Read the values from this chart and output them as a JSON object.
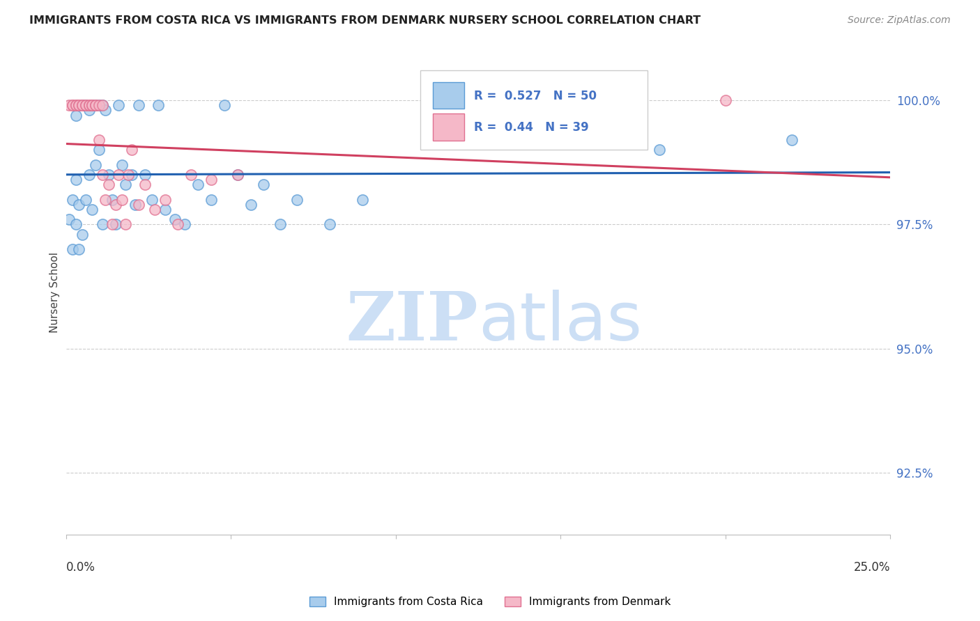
{
  "title": "IMMIGRANTS FROM COSTA RICA VS IMMIGRANTS FROM DENMARK NURSERY SCHOOL CORRELATION CHART",
  "source": "Source: ZipAtlas.com",
  "ylabel": "Nursery School",
  "ytick_labels": [
    "92.5%",
    "95.0%",
    "97.5%",
    "100.0%"
  ],
  "ytick_values": [
    0.925,
    0.95,
    0.975,
    1.0
  ],
  "xlim": [
    0.0,
    0.25
  ],
  "ylim": [
    0.9125,
    1.01
  ],
  "legend_blue_label": "Immigrants from Costa Rica",
  "legend_pink_label": "Immigrants from Denmark",
  "R_blue": 0.527,
  "N_blue": 50,
  "R_pink": 0.44,
  "N_pink": 39,
  "blue_color": "#a8ccec",
  "pink_color": "#f5b8c8",
  "blue_edge_color": "#5b9bd5",
  "pink_edge_color": "#e07090",
  "blue_line_color": "#2060b0",
  "pink_line_color": "#d04060",
  "watermark_zip_color": "#ccdff5",
  "watermark_atlas_color": "#ccdff5",
  "grid_color": "#cccccc",
  "tick_label_color": "#4472c4",
  "title_color": "#222222",
  "source_color": "#888888",
  "ylabel_color": "#444444",
  "costa_rica_x": [
    0.001,
    0.002,
    0.002,
    0.003,
    0.003,
    0.003,
    0.004,
    0.004,
    0.005,
    0.005,
    0.006,
    0.006,
    0.007,
    0.007,
    0.008,
    0.008,
    0.009,
    0.009,
    0.01,
    0.01,
    0.011,
    0.011,
    0.012,
    0.013,
    0.014,
    0.015,
    0.016,
    0.017,
    0.018,
    0.02,
    0.021,
    0.022,
    0.024,
    0.026,
    0.028,
    0.03,
    0.033,
    0.036,
    0.04,
    0.044,
    0.048,
    0.052,
    0.056,
    0.06,
    0.065,
    0.07,
    0.08,
    0.09,
    0.18,
    0.22
  ],
  "costa_rica_y": [
    0.976,
    0.97,
    0.98,
    0.997,
    0.975,
    0.984,
    0.97,
    0.979,
    0.999,
    0.973,
    0.98,
    0.999,
    0.998,
    0.985,
    0.999,
    0.978,
    0.999,
    0.987,
    0.999,
    0.99,
    0.999,
    0.975,
    0.998,
    0.985,
    0.98,
    0.975,
    0.999,
    0.987,
    0.983,
    0.985,
    0.979,
    0.999,
    0.985,
    0.98,
    0.999,
    0.978,
    0.976,
    0.975,
    0.983,
    0.98,
    0.999,
    0.985,
    0.979,
    0.983,
    0.975,
    0.98,
    0.975,
    0.98,
    0.99,
    0.992
  ],
  "denmark_x": [
    0.001,
    0.002,
    0.002,
    0.003,
    0.003,
    0.004,
    0.004,
    0.005,
    0.005,
    0.006,
    0.006,
    0.007,
    0.007,
    0.008,
    0.008,
    0.009,
    0.009,
    0.01,
    0.01,
    0.011,
    0.011,
    0.012,
    0.013,
    0.014,
    0.015,
    0.016,
    0.017,
    0.018,
    0.019,
    0.02,
    0.022,
    0.024,
    0.027,
    0.03,
    0.034,
    0.038,
    0.044,
    0.052,
    0.2
  ],
  "denmark_y": [
    0.999,
    0.999,
    0.999,
    0.999,
    0.999,
    0.999,
    0.999,
    0.999,
    0.999,
    0.999,
    0.999,
    0.999,
    0.999,
    0.999,
    0.999,
    0.999,
    0.999,
    0.999,
    0.992,
    0.999,
    0.985,
    0.98,
    0.983,
    0.975,
    0.979,
    0.985,
    0.98,
    0.975,
    0.985,
    0.99,
    0.979,
    0.983,
    0.978,
    0.98,
    0.975,
    0.985,
    0.984,
    0.985,
    1.0
  ]
}
